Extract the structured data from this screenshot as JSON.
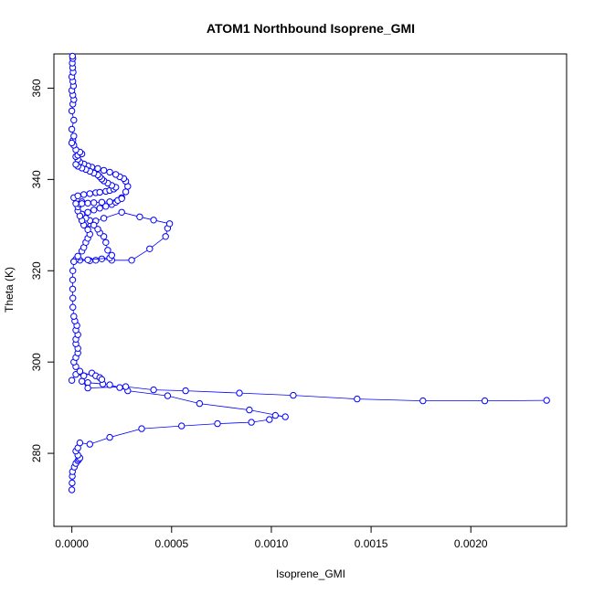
{
  "chart_data": {
    "type": "line",
    "title": "ATOM1 Northbound Isoprene_GMI",
    "xlabel": "Isoprene_GMI",
    "ylabel": "Theta (K)",
    "xlim": [
      -9e-05,
      0.00248
    ],
    "ylim": [
      264,
      367.5
    ],
    "x_ticks": [
      0.0,
      0.0005,
      0.001,
      0.0015,
      0.002
    ],
    "x_tick_labels": [
      "0.0000",
      "0.0005",
      "0.0010",
      "0.0015",
      "0.0020"
    ],
    "y_ticks": [
      280,
      300,
      320,
      340,
      360
    ],
    "y_tick_labels": [
      "280",
      "300",
      "320",
      "340",
      "360"
    ],
    "grid": false,
    "color": "#0000ff",
    "marker": "open-circle",
    "series": [
      {
        "values": [
          [
            0.0,
            272.0
          ],
          [
            1e-06,
            273.5
          ],
          [
            2e-06,
            275.0
          ],
          [
            3e-06,
            276.0
          ],
          [
            1.2e-05,
            277.0
          ],
          [
            2e-05,
            277.8
          ],
          [
            3e-05,
            278.4
          ],
          [
            3.5e-05,
            278.7
          ],
          [
            4e-05,
            279.0
          ],
          [
            3e-05,
            279.6
          ],
          [
            2e-05,
            280.5
          ],
          [
            3e-05,
            281.2
          ],
          [
            4e-05,
            282.3
          ],
          [
            9e-05,
            282.0
          ],
          [
            0.00019,
            283.5
          ],
          [
            0.00035,
            285.4
          ],
          [
            0.00055,
            286.0
          ],
          [
            0.00073,
            286.5
          ],
          [
            0.0009,
            286.8
          ],
          [
            0.00099,
            287.4
          ],
          [
            0.00102,
            288.3
          ],
          [
            0.00107,
            288.0
          ],
          [
            0.00089,
            289.5
          ],
          [
            0.00064,
            290.9
          ],
          [
            0.00048,
            292.6
          ],
          [
            0.00028,
            293.7
          ],
          [
            0.00024,
            294.4
          ],
          [
            0.00019,
            295.0
          ],
          [
            0.000155,
            295.2
          ],
          [
            8e-05,
            295.5
          ],
          [
            5e-05,
            295.8
          ],
          [
            8e-05,
            294.3
          ],
          [
            0.00027,
            294.6
          ],
          [
            0.00041,
            293.9
          ],
          [
            0.00057,
            293.7
          ],
          [
            0.00084,
            293.2
          ],
          [
            0.00111,
            292.7
          ],
          [
            0.00143,
            291.9
          ],
          [
            0.00176,
            291.5
          ],
          [
            0.00207,
            291.5
          ],
          [
            0.00238,
            291.6
          ]
        ]
      },
      {
        "values": [
          [
            0.0,
            296.0
          ],
          [
            2e-05,
            297.3
          ],
          [
            6e-05,
            297.0
          ],
          [
            0.0001,
            297.6
          ],
          [
            0.00012,
            297.0
          ],
          [
            0.00014,
            296.6
          ],
          [
            0.00015,
            296.2
          ],
          [
            4e-05,
            298.0
          ],
          [
            2e-05,
            299.0
          ],
          [
            1e-05,
            300.0
          ],
          [
            2e-05,
            301.0
          ],
          [
            3e-05,
            302.0
          ],
          [
            3e-05,
            303.0
          ],
          [
            2e-05,
            304.0
          ],
          [
            2e-05,
            305.0
          ],
          [
            3e-05,
            306.0
          ],
          [
            2e-05,
            307.0
          ],
          [
            2.5e-05,
            308.0
          ],
          [
            1.5e-05,
            309.0
          ],
          [
            1e-05,
            310.0
          ],
          [
            5e-06,
            312.0
          ],
          [
            5e-06,
            314.0
          ],
          [
            4e-06,
            316.0
          ],
          [
            4e-06,
            318.0
          ],
          [
            5e-06,
            320.0
          ],
          [
            1e-05,
            322.0
          ],
          [
            4e-05,
            322.3
          ],
          [
            9e-05,
            322.2
          ],
          [
            0.00012,
            322.3
          ],
          [
            0.00015,
            322.6
          ],
          [
            0.0002,
            322.3
          ],
          [
            0.0003,
            322.3
          ],
          [
            0.00039,
            324.8
          ],
          [
            0.00047,
            327.5
          ],
          [
            0.00048,
            329.3
          ],
          [
            0.00049,
            330.3
          ],
          [
            0.00041,
            331.1
          ],
          [
            0.00034,
            331.8
          ],
          [
            0.00025,
            332.8
          ],
          [
            0.00016,
            331.5
          ],
          [
            0.00012,
            330.9
          ],
          [
            9e-05,
            330.3
          ],
          [
            7e-05,
            330.5
          ],
          [
            5e-05,
            331.0
          ]
        ]
      },
      {
        "values": [
          [
            2e-05,
            322.5
          ],
          [
            8e-05,
            322.4
          ],
          [
            0.00019,
            322.8
          ],
          [
            0.0002,
            323.4
          ],
          [
            0.00018,
            324.5
          ],
          [
            0.00017,
            326.2
          ],
          [
            0.00016,
            327.5
          ],
          [
            0.00014,
            328.3
          ],
          [
            0.00013,
            329.1
          ],
          [
            0.00011,
            330.0
          ],
          [
            9e-05,
            331.0
          ],
          [
            7e-05,
            331.5
          ],
          [
            5e-05,
            332.4
          ],
          [
            8e-05,
            332.8
          ],
          [
            0.00011,
            333.3
          ],
          [
            0.00014,
            333.7
          ],
          [
            0.00017,
            334.1
          ],
          [
            0.0002,
            334.5
          ],
          [
            0.00022,
            335.0
          ],
          [
            0.00025,
            336.0
          ],
          [
            0.00027,
            337.3
          ],
          [
            0.00028,
            338.5
          ],
          [
            0.00027,
            339.6
          ],
          [
            0.00026,
            340.2
          ],
          [
            0.00024,
            340.6
          ],
          [
            0.00022,
            341.1
          ],
          [
            0.00019,
            341.6
          ],
          [
            0.00016,
            342.0
          ],
          [
            0.00013,
            342.4
          ],
          [
            0.0001,
            342.7
          ],
          [
            8e-05,
            343.0
          ],
          [
            6e-05,
            343.4
          ],
          [
            4e-05,
            343.8
          ],
          [
            3e-05,
            344.4
          ],
          [
            2e-05,
            345.0
          ],
          [
            3e-05,
            345.3
          ],
          [
            5e-05,
            345.6
          ],
          [
            4e-05,
            346.0
          ],
          [
            2e-05,
            346.5
          ],
          [
            1e-05,
            347.5
          ],
          [
            5e-06,
            348.5
          ]
        ]
      },
      {
        "values": [
          [
            1e-05,
            336.0
          ],
          [
            3e-05,
            336.4
          ],
          [
            6e-05,
            336.7
          ],
          [
            9e-05,
            336.9
          ],
          [
            0.00012,
            337.1
          ],
          [
            0.00014,
            337.2
          ],
          [
            0.00017,
            337.4
          ],
          [
            0.00019,
            337.6
          ],
          [
            0.00021,
            337.9
          ],
          [
            0.00022,
            338.3
          ],
          [
            0.0002,
            338.7
          ],
          [
            0.00018,
            339.2
          ],
          [
            0.00016,
            339.7
          ],
          [
            0.00015,
            340.1
          ],
          [
            0.00014,
            340.6
          ],
          [
            0.00013,
            341.0
          ],
          [
            0.00011,
            341.4
          ],
          [
            9e-05,
            341.8
          ],
          [
            7e-05,
            342.2
          ],
          [
            5e-05,
            342.5
          ],
          [
            3e-05,
            342.9
          ],
          [
            2e-05,
            343.3
          ]
        ]
      },
      {
        "values": [
          [
            1e-05,
            322.0
          ],
          [
            3e-05,
            323.2
          ],
          [
            5e-05,
            324.3
          ],
          [
            6e-05,
            325.1
          ],
          [
            7e-05,
            326.2
          ],
          [
            8e-05,
            327.1
          ],
          [
            9e-05,
            328.0
          ],
          [
            8e-05,
            329.0
          ],
          [
            6e-05,
            330.0
          ],
          [
            5e-05,
            331.0
          ],
          [
            4e-05,
            332.0
          ],
          [
            3e-05,
            333.1
          ],
          [
            3e-05,
            334.0
          ],
          [
            4e-05,
            334.6
          ],
          [
            5e-05,
            335.1
          ]
        ]
      },
      {
        "values": [
          [
            2e-05,
            334.7
          ],
          [
            5e-05,
            334.7
          ],
          [
            8e-05,
            334.8
          ],
          [
            0.00011,
            334.9
          ],
          [
            0.00015,
            335.0
          ],
          [
            0.00019,
            335.1
          ],
          [
            0.00023,
            335.4
          ],
          [
            0.00025,
            335.8
          ]
        ]
      },
      {
        "values": [
          [
            0.0,
            348.0
          ],
          [
            1e-05,
            349.5
          ],
          [
            0.0,
            351.0
          ],
          [
            1e-05,
            353.0
          ],
          [
            0.0,
            355.0
          ],
          [
            5e-06,
            356.5
          ],
          [
            1e-05,
            357.5
          ],
          [
            5e-06,
            358.5
          ],
          [
            0.0,
            359.5
          ],
          [
            8e-06,
            360.5
          ],
          [
            5e-06,
            361.5
          ],
          [
            0.0,
            362.5
          ],
          [
            6e-06,
            363.5
          ],
          [
            4e-06,
            364.5
          ],
          [
            2e-06,
            365.5
          ],
          [
            5e-06,
            366.5
          ],
          [
            3e-06,
            367.0
          ]
        ]
      }
    ]
  }
}
